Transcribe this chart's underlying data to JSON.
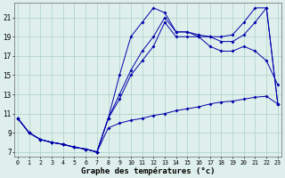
{
  "xlabel": "Graphe des températures (°c)",
  "bg_color": "#dff0ec",
  "grid_color": "#aacfc8",
  "line_color": "#0000aa",
  "x_ticks": [
    0,
    1,
    2,
    3,
    4,
    5,
    6,
    7,
    8,
    9,
    10,
    11,
    12,
    13,
    14,
    15,
    16,
    17,
    18,
    19,
    20,
    21,
    22,
    23
  ],
  "y_ticks": [
    7,
    9,
    11,
    13,
    15,
    17,
    19,
    21
  ],
  "xlim": [
    0,
    23
  ],
  "ylim": [
    6.5,
    22.5
  ],
  "shared_x": [
    0,
    1,
    2,
    3,
    4,
    5,
    6,
    7
  ],
  "shared_y": [
    10.5,
    9.0,
    8.3,
    8.0,
    7.8,
    7.5,
    7.3,
    7.0
  ],
  "line1_x": [
    7,
    8,
    9,
    10,
    11,
    12,
    13,
    14,
    15,
    16,
    17,
    18,
    19,
    20,
    21,
    22,
    23
  ],
  "line1_y": [
    7.0,
    9.5,
    10.0,
    10.3,
    10.5,
    10.8,
    11.0,
    11.3,
    11.5,
    11.7,
    12.0,
    12.2,
    12.3,
    12.5,
    12.7,
    12.8,
    12.0
  ],
  "line2_x": [
    7,
    8,
    9,
    10,
    11,
    12,
    13,
    14,
    15,
    16,
    17,
    18,
    19,
    20,
    21,
    22,
    23
  ],
  "line2_y": [
    7.0,
    10.5,
    15.0,
    19.0,
    20.5,
    22.0,
    21.5,
    19.5,
    19.5,
    19.2,
    19.0,
    19.0,
    19.2,
    20.5,
    22.0,
    22.0,
    12.0
  ],
  "line3_x": [
    7,
    8,
    9,
    10,
    11,
    12,
    13,
    14,
    15,
    16,
    17,
    18,
    19,
    20,
    21,
    22,
    23
  ],
  "line3_y": [
    7.0,
    10.5,
    13.0,
    15.5,
    17.5,
    19.0,
    21.0,
    19.5,
    19.5,
    19.0,
    19.0,
    18.5,
    18.5,
    19.2,
    20.5,
    22.0,
    12.0
  ],
  "line4_x": [
    7,
    8,
    9,
    10,
    11,
    12,
    13,
    14,
    15,
    16,
    17,
    18,
    19,
    20,
    21,
    22,
    23
  ],
  "line4_y": [
    7.0,
    10.5,
    12.5,
    15.0,
    16.5,
    18.0,
    20.5,
    19.0,
    19.0,
    19.0,
    18.0,
    17.5,
    17.5,
    18.0,
    17.5,
    16.5,
    14.0
  ]
}
